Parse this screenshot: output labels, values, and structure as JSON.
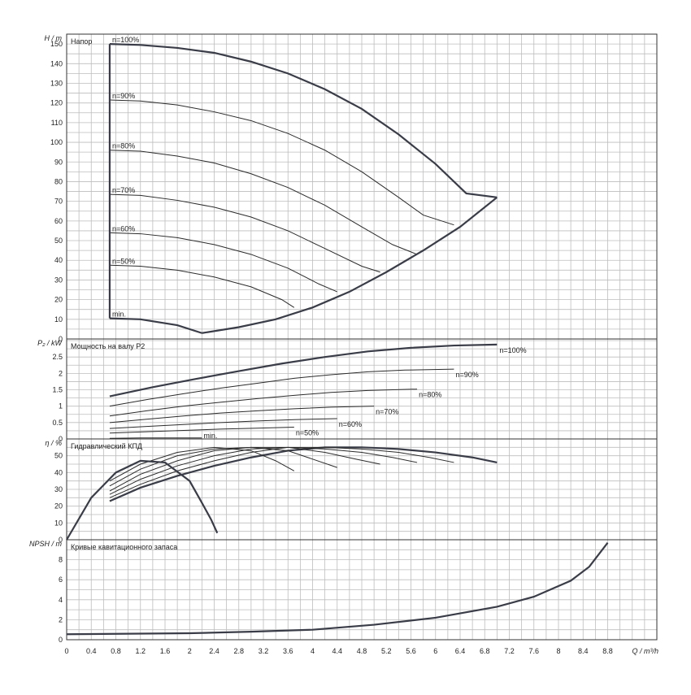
{
  "chart_data": {
    "type": "line",
    "x_axis": {
      "label": "Q / m³/h",
      "range": [
        0,
        9.6
      ],
      "ticks": [
        "0",
        "0.4",
        "0.8",
        "1.2",
        "1.6",
        "2",
        "2.4",
        "2.8",
        "3.2",
        "3.6",
        "4",
        "4.4",
        "4.8",
        "5.2",
        "5.6",
        "6",
        "6.4",
        "6.8",
        "7.2",
        "7.6",
        "8",
        "8.4",
        "8.8"
      ],
      "grid": true
    },
    "panels": [
      {
        "id": "head",
        "title": "Напор",
        "ylabel": "H / m",
        "ylim": [
          0,
          155
        ],
        "yticks": [
          0,
          10,
          20,
          30,
          40,
          50,
          60,
          70,
          80,
          90,
          100,
          110,
          120,
          130,
          140,
          150
        ],
        "series": [
          {
            "name": "n=100%",
            "x": [
              0.7,
              1.2,
              1.8,
              2.4,
              3,
              3.6,
              4.2,
              4.8,
              5.4,
              6,
              6.5,
              7
            ],
            "y": [
              150,
              149.5,
              148,
              145.5,
              141,
              135,
              127,
              117,
              104,
              89,
              74,
              72
            ]
          },
          {
            "name": "n=90%",
            "x": [
              0.7,
              1.2,
              1.8,
              2.4,
              3,
              3.6,
              4.2,
              4.8,
              5.4,
              5.8,
              6.3
            ],
            "y": [
              121.5,
              121,
              119,
              115.5,
              111,
              104.5,
              96,
              85,
              72,
              63,
              58
            ]
          },
          {
            "name": "n=80%",
            "x": [
              0.7,
              1.2,
              1.8,
              2.4,
              3,
              3.6,
              4.2,
              4.8,
              5.3,
              5.7
            ],
            "y": [
              96,
              95.5,
              93,
              89.5,
              84,
              77,
              68,
              57,
              48,
              43
            ]
          },
          {
            "name": "n=70%",
            "x": [
              0.7,
              1.2,
              1.8,
              2.4,
              3,
              3.6,
              4.2,
              4.8,
              5.1
            ],
            "y": [
              73.5,
              73,
              70.5,
              67,
              62,
              55,
              46,
              37,
              34
            ]
          },
          {
            "name": "n=60%",
            "x": [
              0.7,
              1.2,
              1.8,
              2.4,
              3,
              3.6,
              4.1,
              4.4
            ],
            "y": [
              54,
              53.5,
              51.5,
              48,
              43,
              36,
              28,
              24
            ]
          },
          {
            "name": "n=50%",
            "x": [
              0.7,
              1.2,
              1.8,
              2.4,
              3,
              3.5,
              3.7
            ],
            "y": [
              37.5,
              37,
              35,
              31.5,
              26.5,
              20,
              16
            ]
          },
          {
            "name": "min.",
            "x": [
              0.7,
              1.2,
              1.8,
              2.2
            ],
            "y": [
              10.5,
              10,
              7,
              3
            ]
          },
          {
            "name": "",
            "x": [
              2.2,
              2.8,
              3.4,
              4,
              4.6,
              5.2,
              5.8,
              6.4,
              7
            ],
            "y": [
              3,
              6,
              10,
              16,
              24,
              34,
              45,
              57,
              72
            ]
          }
        ],
        "labels": [
          "n=100%",
          "n=90%",
          "n=80%",
          "n=70%",
          "n=60%",
          "n=50%",
          "min."
        ]
      },
      {
        "id": "power",
        "title": "Мощность на валу P2",
        "ylabel": "P₂ / kW",
        "ylim": [
          0,
          3.05
        ],
        "yticks": [
          0,
          0.5,
          1,
          1.5,
          2,
          2.5
        ],
        "ytick_labels": [
          "0",
          "0.5",
          "1",
          "1.5",
          "2",
          "2.5"
        ],
        "series": [
          {
            "name": "n=100%",
            "x": [
              0.7,
              1.4,
              2.1,
              2.8,
              3.5,
              4.2,
              4.9,
              5.6,
              6.3,
              7
            ],
            "y": [
              1.3,
              1.58,
              1.83,
              2.07,
              2.3,
              2.5,
              2.67,
              2.78,
              2.85,
              2.88
            ]
          },
          {
            "name": "n=90%",
            "x": [
              0.7,
              1.3,
              1.9,
              2.5,
              3.1,
              3.7,
              4.3,
              4.9,
              5.5,
              6.3
            ],
            "y": [
              1,
              1.2,
              1.38,
              1.55,
              1.7,
              1.85,
              1.96,
              2.05,
              2.1,
              2.13
            ]
          },
          {
            "name": "n=80%",
            "x": [
              0.7,
              1.3,
              1.9,
              2.5,
              3.1,
              3.7,
              4.3,
              4.9,
              5.7
            ],
            "y": [
              0.7,
              0.86,
              1,
              1.12,
              1.23,
              1.33,
              1.42,
              1.48,
              1.52
            ]
          },
          {
            "name": "n=70%",
            "x": [
              0.7,
              1.3,
              1.9,
              2.5,
              3.1,
              3.7,
              4.3,
              5
            ],
            "y": [
              0.5,
              0.6,
              0.7,
              0.79,
              0.86,
              0.92,
              0.97,
              1
            ]
          },
          {
            "name": "n=60%",
            "x": [
              0.7,
              1.3,
              1.9,
              2.5,
              3.1,
              3.7,
              4.4
            ],
            "y": [
              0.32,
              0.38,
              0.44,
              0.5,
              0.55,
              0.59,
              0.62
            ]
          },
          {
            "name": "n=50%",
            "x": [
              0.7,
              1.3,
              1.9,
              2.5,
              3.1,
              3.7
            ],
            "y": [
              0.18,
              0.22,
              0.26,
              0.3,
              0.33,
              0.36
            ]
          },
          {
            "name": "min.",
            "x": [
              0.7,
              1.2,
              1.7,
              2.2
            ],
            "y": [
              0.02,
              0.03,
              0.03,
              0.03
            ]
          }
        ],
        "labels": [
          "n=100%",
          "n=90%",
          "n=80%",
          "n=70%",
          "n=60%",
          "n=50%",
          "min."
        ]
      },
      {
        "id": "efficiency",
        "title": "Гидравлический КПД",
        "ylabel": "η / %",
        "ylim": [
          0,
          60
        ],
        "yticks": [
          0,
          10,
          20,
          30,
          40,
          50
        ],
        "series": [
          {
            "name": "n=100%",
            "x": [
              0.7,
              1.2,
              1.8,
              2.4,
              3,
              3.6,
              4.2,
              4.8,
              5.4,
              6,
              6.6,
              7
            ],
            "y": [
              23,
              31,
              38,
              44,
              49,
              53,
              55,
              55,
              54,
              52,
              49,
              46
            ]
          },
          {
            "name": "n=90%",
            "x": [
              0.7,
              1.2,
              1.8,
              2.4,
              3,
              3.6,
              4.2,
              4.8,
              5.4,
              5.9,
              6.3
            ],
            "y": [
              25,
              33,
              41,
              47,
              52,
              55,
              55,
              54,
              52,
              49,
              46
            ]
          },
          {
            "name": "n=80%",
            "x": [
              0.7,
              1.2,
              1.8,
              2.4,
              3,
              3.6,
              4.2,
              4.8,
              5.3,
              5.7
            ],
            "y": [
              27,
              36,
              44,
              50,
              54,
              55,
              54,
              52,
              49,
              46
            ]
          },
          {
            "name": "n=70%",
            "x": [
              0.7,
              1.2,
              1.8,
              2.4,
              3,
              3.6,
              4.2,
              4.7,
              5.1
            ],
            "y": [
              29,
              39,
              47,
              53,
              55,
              55,
              52,
              48,
              45
            ]
          },
          {
            "name": "n=60%",
            "x": [
              0.7,
              1.2,
              1.8,
              2.4,
              3,
              3.6,
              4,
              4.4
            ],
            "y": [
              32,
              42,
              50,
              54,
              55,
              53,
              48,
              43
            ]
          },
          {
            "name": "n=50%",
            "x": [
              0.7,
              1.2,
              1.8,
              2.4,
              3,
              3.4,
              3.7
            ],
            "y": [
              35,
              45,
              52,
              55,
              53,
              47,
              41
            ]
          },
          {
            "name": "min.",
            "x": [
              0,
              0.4,
              0.8,
              1.2,
              1.6,
              2,
              2.2,
              2.35,
              2.45
            ],
            "y": [
              0,
              25,
              40,
              47,
              46,
              35,
              22,
              12,
              4
            ]
          }
        ]
      },
      {
        "id": "npsh",
        "title": "Кривые кавитационного запаса",
        "ylabel": "NPSH / m",
        "ylim": [
          0,
          10
        ],
        "yticks": [
          0,
          2,
          4,
          6,
          8
        ],
        "series": [
          {
            "name": "",
            "x": [
              0,
              1,
              2,
              3,
              4,
              5,
              6,
              7,
              7.6,
              8.2,
              8.5,
              8.8
            ],
            "y": [
              0.55,
              0.6,
              0.65,
              0.8,
              1,
              1.5,
              2.2,
              3.3,
              4.3,
              5.9,
              7.3,
              9.7
            ]
          }
        ]
      }
    ]
  }
}
